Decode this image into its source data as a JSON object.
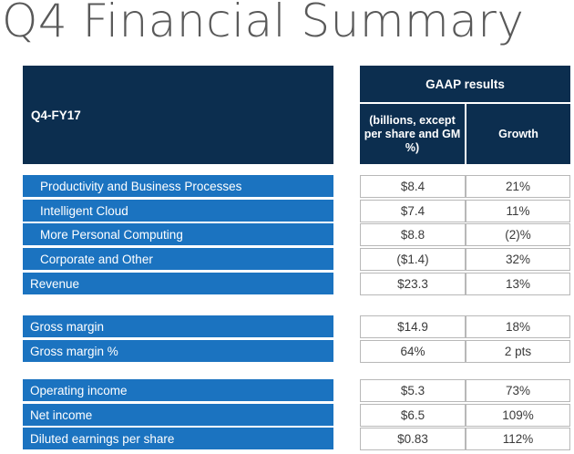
{
  "title": "Q4 Financial Summary",
  "header": {
    "period": "Q4-FY17",
    "gaap": "GAAP results",
    "col1": "(billions, except per share and GM %)",
    "col2": "Growth"
  },
  "groups": [
    {
      "rows": [
        {
          "label": "Productivity and Business Processes",
          "value": "$8.4",
          "growth": "21%",
          "indent": true
        },
        {
          "label": "Intelligent Cloud",
          "value": "$7.4",
          "growth": "11%",
          "indent": true
        },
        {
          "label": "More Personal Computing",
          "value": "$8.8",
          "growth": "(2)%",
          "indent": true
        },
        {
          "label": "Corporate and Other",
          "value": "($1.4)",
          "growth": "32%",
          "indent": true
        },
        {
          "label": "Revenue",
          "value": "$23.3",
          "growth": "13%",
          "indent": false
        }
      ]
    },
    {
      "rows": [
        {
          "label": "Gross margin",
          "value": "$14.9",
          "growth": "18%",
          "indent": false
        },
        {
          "label": "Gross margin %",
          "value": "64%",
          "growth": "2 pts",
          "indent": false
        }
      ]
    },
    {
      "rows": [
        {
          "label": "Operating income",
          "value": "$5.3",
          "growth": "73%",
          "indent": false
        },
        {
          "label": "Net income",
          "value": "$6.5",
          "growth": "109%",
          "indent": false
        },
        {
          "label": "Diluted earnings per share",
          "value": "$0.83",
          "growth": "112%",
          "indent": false
        }
      ]
    }
  ]
}
